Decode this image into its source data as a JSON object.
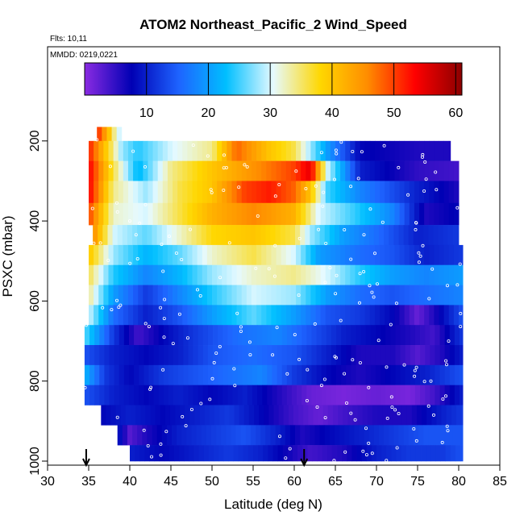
{
  "chart_data": {
    "type": "heatmap",
    "title": "ATOM2 Northeast_Pacific_2 Wind_Speed",
    "flights_label": "Flts: 10,11",
    "dates_label": "MMDD: 0219,0221",
    "xlabel": "Latitude (deg N)",
    "ylabel": "PSXC (mbar)",
    "xlim": [
      30,
      85
    ],
    "ylim": [
      1000,
      0
    ],
    "x_ticks": [
      "30",
      "35",
      "40",
      "45",
      "50",
      "55",
      "60",
      "65",
      "70",
      "75",
      "80",
      "85"
    ],
    "y_ticks": [
      "200",
      "400",
      "600",
      "800",
      "1000"
    ],
    "colorbar": {
      "range": [
        0,
        61
      ],
      "ticks": [
        "10",
        "20",
        "30",
        "40",
        "50",
        "60"
      ],
      "colors": [
        "#8a2be2",
        "#0000b4",
        "#1e64ff",
        "#00bfff",
        "#e6faff",
        "#ffd700",
        "#ff8c00",
        "#ff0000",
        "#8b0000"
      ]
    },
    "layers": [
      {
        "p_top": 165,
        "p_bot": 200,
        "lat_start": 36,
        "lat_end": 39,
        "values": [
          [
            36,
            52
          ],
          [
            37.5,
            40
          ],
          [
            38.5,
            30
          ]
        ]
      },
      {
        "p_top": 200,
        "p_bot": 250,
        "lat_start": 35,
        "lat_end": 79,
        "values": [
          [
            35,
            52
          ],
          [
            37,
            40
          ],
          [
            39,
            28
          ],
          [
            41,
            24
          ],
          [
            45,
            30
          ],
          [
            50,
            34
          ],
          [
            53,
            48
          ],
          [
            57,
            40
          ],
          [
            60,
            36
          ],
          [
            64,
            20
          ],
          [
            68,
            8
          ],
          [
            75,
            6
          ],
          [
            79,
            6
          ]
        ]
      },
      {
        "p_top": 250,
        "p_bot": 300,
        "lat_start": 35,
        "lat_end": 80,
        "values": [
          [
            35,
            54
          ],
          [
            38,
            36
          ],
          [
            41,
            22
          ],
          [
            45,
            34
          ],
          [
            50,
            40
          ],
          [
            55,
            45
          ],
          [
            60,
            50
          ],
          [
            62,
            55
          ],
          [
            64,
            30
          ],
          [
            68,
            10
          ],
          [
            75,
            5
          ],
          [
            80,
            4
          ]
        ]
      },
      {
        "p_top": 300,
        "p_bot": 355,
        "lat_start": 35,
        "lat_end": 80,
        "values": [
          [
            35,
            54
          ],
          [
            38,
            34
          ],
          [
            42,
            28
          ],
          [
            46,
            36
          ],
          [
            50,
            40
          ],
          [
            54,
            50
          ],
          [
            57,
            52
          ],
          [
            60,
            48
          ],
          [
            62,
            40
          ],
          [
            64,
            25
          ],
          [
            68,
            18
          ],
          [
            75,
            10
          ],
          [
            80,
            6
          ]
        ]
      },
      {
        "p_top": 355,
        "p_bot": 410,
        "lat_start": 35,
        "lat_end": 80,
        "values": [
          [
            35,
            50
          ],
          [
            38,
            32
          ],
          [
            42,
            30
          ],
          [
            46,
            36
          ],
          [
            50,
            42
          ],
          [
            55,
            46
          ],
          [
            60,
            42
          ],
          [
            63,
            30
          ],
          [
            67,
            25
          ],
          [
            72,
            18
          ],
          [
            76,
            6
          ],
          [
            80,
            8
          ]
        ]
      },
      {
        "p_top": 410,
        "p_bot": 460,
        "lat_start": 35.5,
        "lat_end": 80,
        "values": [
          [
            35.5,
            46
          ],
          [
            38,
            30
          ],
          [
            42,
            26
          ],
          [
            46,
            32
          ],
          [
            50,
            38
          ],
          [
            55,
            40
          ],
          [
            60,
            36
          ],
          [
            62,
            28
          ],
          [
            66,
            20
          ],
          [
            70,
            16
          ],
          [
            75,
            10
          ],
          [
            80,
            12
          ]
        ]
      },
      {
        "p_top": 460,
        "p_bot": 510,
        "lat_start": 35,
        "lat_end": 80.5,
        "values": [
          [
            35,
            40
          ],
          [
            38,
            28
          ],
          [
            42,
            22
          ],
          [
            46,
            26
          ],
          [
            50,
            32
          ],
          [
            55,
            36
          ],
          [
            60,
            30
          ],
          [
            63,
            20
          ],
          [
            68,
            16
          ],
          [
            72,
            14
          ],
          [
            76,
            10
          ],
          [
            80.5,
            12
          ]
        ]
      },
      {
        "p_top": 510,
        "p_bot": 560,
        "lat_start": 35,
        "lat_end": 80.5,
        "values": [
          [
            35,
            36
          ],
          [
            38,
            24
          ],
          [
            42,
            18
          ],
          [
            46,
            22
          ],
          [
            50,
            28
          ],
          [
            55,
            32
          ],
          [
            60,
            34
          ],
          [
            64,
            30
          ],
          [
            68,
            24
          ],
          [
            72,
            20
          ],
          [
            76,
            18
          ],
          [
            80.5,
            20
          ]
        ]
      },
      {
        "p_top": 560,
        "p_bot": 610,
        "lat_start": 35,
        "lat_end": 80.5,
        "values": [
          [
            35,
            34
          ],
          [
            38,
            20
          ],
          [
            42,
            12
          ],
          [
            46,
            18
          ],
          [
            50,
            24
          ],
          [
            55,
            30
          ],
          [
            60,
            28
          ],
          [
            64,
            20
          ],
          [
            68,
            16
          ],
          [
            72,
            14
          ],
          [
            76,
            16
          ],
          [
            80.5,
            18
          ]
        ]
      },
      {
        "p_top": 610,
        "p_bot": 660,
        "lat_start": 35,
        "lat_end": 80.5,
        "values": [
          [
            35,
            30
          ],
          [
            38,
            16
          ],
          [
            42,
            10
          ],
          [
            46,
            14
          ],
          [
            50,
            20
          ],
          [
            55,
            26
          ],
          [
            60,
            20
          ],
          [
            64,
            14
          ],
          [
            68,
            12
          ],
          [
            72,
            8
          ],
          [
            75,
            2
          ],
          [
            77,
            6
          ],
          [
            80.5,
            14
          ]
        ]
      },
      {
        "p_top": 660,
        "p_bot": 710,
        "lat_start": 34.5,
        "lat_end": 80.5,
        "values": [
          [
            34.5,
            26
          ],
          [
            38,
            12
          ],
          [
            41,
            4
          ],
          [
            44,
            8
          ],
          [
            48,
            12
          ],
          [
            53,
            16
          ],
          [
            58,
            18
          ],
          [
            62,
            14
          ],
          [
            66,
            10
          ],
          [
            70,
            8
          ],
          [
            74,
            6
          ],
          [
            77,
            4
          ],
          [
            80.5,
            12
          ]
        ]
      },
      {
        "p_top": 710,
        "p_bot": 760,
        "lat_start": 34.5,
        "lat_end": 80.5,
        "values": [
          [
            34.5,
            14
          ],
          [
            38,
            10
          ],
          [
            42,
            8
          ],
          [
            46,
            10
          ],
          [
            50,
            14
          ],
          [
            55,
            16
          ],
          [
            60,
            14
          ],
          [
            64,
            10
          ],
          [
            68,
            6
          ],
          [
            72,
            6
          ],
          [
            75,
            3
          ],
          [
            78,
            6
          ],
          [
            80.5,
            10
          ]
        ]
      },
      {
        "p_top": 760,
        "p_bot": 810,
        "lat_start": 34.5,
        "lat_end": 80.5,
        "values": [
          [
            34.5,
            22
          ],
          [
            37,
            12
          ],
          [
            40,
            8
          ],
          [
            44,
            12
          ],
          [
            48,
            14
          ],
          [
            52,
            16
          ],
          [
            56,
            18
          ],
          [
            60,
            12
          ],
          [
            64,
            8
          ],
          [
            68,
            6
          ],
          [
            72,
            8
          ],
          [
            76,
            10
          ],
          [
            80.5,
            14
          ]
        ]
      },
      {
        "p_top": 810,
        "p_bot": 860,
        "lat_start": 34.5,
        "lat_end": 80.5,
        "values": [
          [
            34.5,
            14
          ],
          [
            38,
            10
          ],
          [
            42,
            8
          ],
          [
            46,
            10
          ],
          [
            50,
            8
          ],
          [
            54,
            10
          ],
          [
            58,
            6
          ],
          [
            62,
            2
          ],
          [
            66,
            1
          ],
          [
            70,
            2
          ],
          [
            74,
            1
          ],
          [
            77,
            4
          ],
          [
            80.5,
            10
          ]
        ]
      },
      {
        "p_top": 860,
        "p_bot": 910,
        "lat_start": 36.5,
        "lat_end": 80.5,
        "values": [
          [
            36.5,
            8
          ],
          [
            40,
            10
          ],
          [
            44,
            8
          ],
          [
            48,
            10
          ],
          [
            52,
            12
          ],
          [
            56,
            8
          ],
          [
            60,
            4
          ],
          [
            63,
            2
          ],
          [
            66,
            4
          ],
          [
            70,
            6
          ],
          [
            74,
            6
          ],
          [
            78,
            10
          ],
          [
            80.5,
            12
          ]
        ]
      },
      {
        "p_top": 910,
        "p_bot": 960,
        "lat_start": 38.5,
        "lat_end": 80.5,
        "values": [
          [
            38.5,
            10
          ],
          [
            40,
            3
          ],
          [
            42,
            6
          ],
          [
            46,
            10
          ],
          [
            50,
            12
          ],
          [
            54,
            14
          ],
          [
            58,
            10
          ],
          [
            61,
            6
          ],
          [
            64,
            8
          ],
          [
            68,
            10
          ],
          [
            72,
            12
          ],
          [
            76,
            14
          ],
          [
            80.5,
            14
          ]
        ]
      },
      {
        "p_top": 960,
        "p_bot": 1000,
        "lat_start": 40,
        "lat_end": 80.5,
        "values": [
          [
            40,
            10
          ],
          [
            44,
            8
          ],
          [
            48,
            10
          ],
          [
            52,
            12
          ],
          [
            56,
            10
          ],
          [
            60,
            6
          ],
          [
            62,
            4
          ],
          [
            66,
            6
          ],
          [
            70,
            10
          ],
          [
            74,
            12
          ],
          [
            78,
            12
          ],
          [
            80.5,
            14
          ]
        ]
      }
    ],
    "arrows_lat": [
      34.7,
      61.2
    ]
  }
}
